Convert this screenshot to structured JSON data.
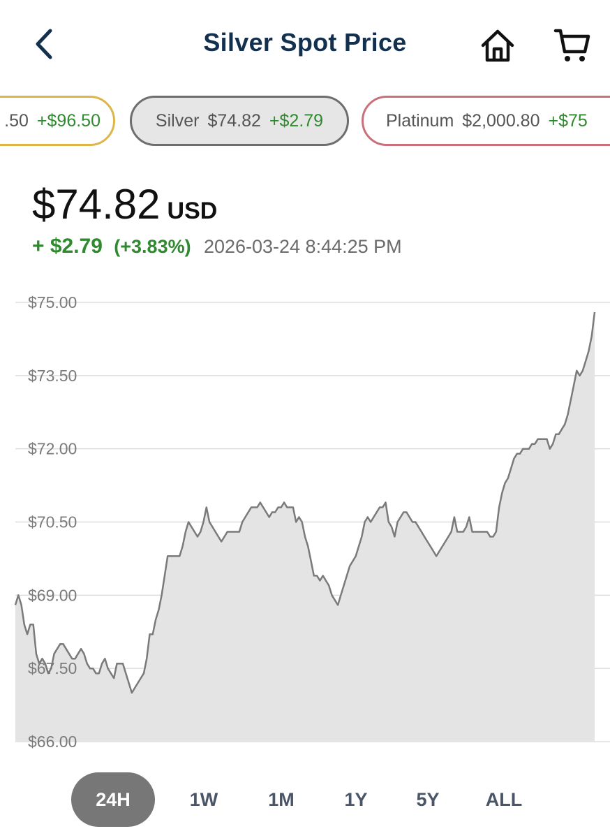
{
  "header": {
    "title": "Silver Spot Price",
    "back_icon": "chevron-left-icon",
    "home_icon": "home-icon",
    "cart_icon": "cart-icon",
    "icon_color": "#14304f"
  },
  "metal_chips": [
    {
      "name": "",
      "price": ".50",
      "change": "+$96.50",
      "border_color": "#dcb64a"
    },
    {
      "name": "Silver",
      "price": "$74.82",
      "change": "+$2.79",
      "border_color": "#6e6e6e",
      "selected": true
    },
    {
      "name": "Platinum",
      "price": "$2,000.80",
      "change": "+$75",
      "border_color": "#c9707a"
    }
  ],
  "quote": {
    "price": "$74.82",
    "currency": "USD",
    "change_abs": "+ $2.79",
    "change_pct": "(+3.83%)",
    "timestamp": "2026-03-24 8:44:25 PM",
    "positive_color": "#2f8a2f"
  },
  "chart_data": {
    "type": "area",
    "ylim": [
      66.0,
      75.0
    ],
    "y_ticks": [
      "$75.00",
      "$73.50",
      "$72.00",
      "$70.50",
      "$69.00",
      "$67.50",
      "$66.00"
    ],
    "grid": true,
    "line_color": "#7a7a7a",
    "fill_color": "#e4e4e4",
    "series": [
      {
        "values": [
          68.8,
          69.0,
          68.8,
          68.4,
          68.2,
          68.4,
          68.4,
          67.8,
          67.6,
          67.7,
          67.6,
          67.4,
          67.5,
          67.8,
          67.9,
          68.0,
          68.0,
          67.9,
          67.8,
          67.7,
          67.7,
          67.8,
          67.9,
          67.8,
          67.6,
          67.5,
          67.5,
          67.4,
          67.4,
          67.6,
          67.7,
          67.5,
          67.4,
          67.3,
          67.6,
          67.6,
          67.6,
          67.4,
          67.2,
          67.0,
          67.1,
          67.2,
          67.3,
          67.4,
          67.7,
          68.2,
          68.2,
          68.5,
          68.7,
          69.0,
          69.4,
          69.8,
          69.8,
          69.8,
          69.8,
          69.8,
          70.0,
          70.3,
          70.5,
          70.4,
          70.3,
          70.2,
          70.3,
          70.5,
          70.8,
          70.5,
          70.4,
          70.3,
          70.2,
          70.1,
          70.2,
          70.3,
          70.3,
          70.3,
          70.3,
          70.3,
          70.5,
          70.6,
          70.7,
          70.8,
          70.8,
          70.8,
          70.9,
          70.8,
          70.7,
          70.6,
          70.7,
          70.7,
          70.8,
          70.8,
          70.9,
          70.8,
          70.8,
          70.8,
          70.5,
          70.6,
          70.5,
          70.2,
          70.0,
          69.7,
          69.4,
          69.4,
          69.3,
          69.4,
          69.3,
          69.2,
          69.0,
          68.9,
          68.8,
          69.0,
          69.2,
          69.4,
          69.6,
          69.7,
          69.8,
          70.0,
          70.2,
          70.5,
          70.6,
          70.5,
          70.6,
          70.7,
          70.8,
          70.8,
          70.9,
          70.5,
          70.4,
          70.2,
          70.5,
          70.6,
          70.7,
          70.7,
          70.6,
          70.5,
          70.5,
          70.4,
          70.3,
          70.2,
          70.1,
          70.0,
          69.9,
          69.8,
          69.9,
          70.0,
          70.1,
          70.2,
          70.3,
          70.6,
          70.3,
          70.3,
          70.3,
          70.4,
          70.6,
          70.3,
          70.3,
          70.3,
          70.3,
          70.3,
          70.3,
          70.2,
          70.2,
          70.3,
          70.8,
          71.1,
          71.3,
          71.4,
          71.6,
          71.8,
          71.9,
          71.9,
          72.0,
          72.0,
          72.0,
          72.1,
          72.1,
          72.2,
          72.2,
          72.2,
          72.2,
          72.0,
          72.1,
          72.3,
          72.3,
          72.4,
          72.5,
          72.7,
          73.0,
          73.3,
          73.6,
          73.5,
          73.6,
          73.8,
          74.0,
          74.3,
          74.8
        ]
      }
    ],
    "x_axis": "24H"
  },
  "ranges": {
    "items": [
      "24H",
      "1W",
      "1M",
      "1Y",
      "5Y",
      "ALL"
    ],
    "active": "24H",
    "active_color": "#777777"
  }
}
